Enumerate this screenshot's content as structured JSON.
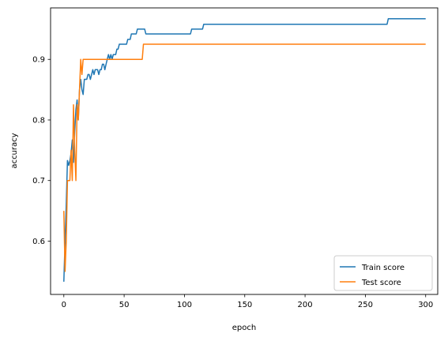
{
  "chart_data": {
    "type": "line",
    "title": "",
    "xlabel": "epoch",
    "ylabel": "accuracy",
    "xlim": [
      -11,
      310
    ],
    "ylim": [
      0.512,
      0.985
    ],
    "xticks": [
      0,
      50,
      100,
      150,
      200,
      250,
      300
    ],
    "yticks": [
      0.6,
      0.7,
      0.8,
      0.9
    ],
    "ytick_labels": [
      "0.6",
      "0.7",
      "0.8",
      "0.9"
    ],
    "grid": false,
    "legend_position": "bottom-right",
    "series": [
      {
        "name": "Train score",
        "color": "#1f77b4",
        "points": [
          [
            0,
            0.533
          ],
          [
            1,
            0.6
          ],
          [
            2,
            0.66
          ],
          [
            3,
            0.733
          ],
          [
            4,
            0.725
          ],
          [
            5,
            0.733
          ],
          [
            6,
            0.745
          ],
          [
            7,
            0.767
          ],
          [
            8,
            0.73
          ],
          [
            9,
            0.78
          ],
          [
            10,
            0.817
          ],
          [
            11,
            0.833
          ],
          [
            12,
            0.8
          ],
          [
            13,
            0.85
          ],
          [
            14,
            0.867
          ],
          [
            15,
            0.85
          ],
          [
            16,
            0.842
          ],
          [
            17,
            0.867
          ],
          [
            18,
            0.867
          ],
          [
            19,
            0.867
          ],
          [
            20,
            0.875
          ],
          [
            21,
            0.875
          ],
          [
            22,
            0.867
          ],
          [
            23,
            0.875
          ],
          [
            24,
            0.883
          ],
          [
            25,
            0.875
          ],
          [
            26,
            0.883
          ],
          [
            27,
            0.883
          ],
          [
            28,
            0.883
          ],
          [
            29,
            0.875
          ],
          [
            30,
            0.883
          ],
          [
            31,
            0.883
          ],
          [
            32,
            0.892
          ],
          [
            33,
            0.892
          ],
          [
            34,
            0.883
          ],
          [
            35,
            0.892
          ],
          [
            36,
            0.9
          ],
          [
            37,
            0.908
          ],
          [
            38,
            0.9
          ],
          [
            39,
            0.908
          ],
          [
            40,
            0.9
          ],
          [
            41,
            0.908
          ],
          [
            42,
            0.908
          ],
          [
            43,
            0.908
          ],
          [
            44,
            0.917
          ],
          [
            45,
            0.917
          ],
          [
            46,
            0.925
          ],
          [
            47,
            0.925
          ],
          [
            50,
            0.925
          ],
          [
            52,
            0.925
          ],
          [
            53,
            0.933
          ],
          [
            55,
            0.933
          ],
          [
            56,
            0.942
          ],
          [
            60,
            0.942
          ],
          [
            61,
            0.95
          ],
          [
            67,
            0.95
          ],
          [
            68,
            0.942
          ],
          [
            105,
            0.942
          ],
          [
            106,
            0.95
          ],
          [
            115,
            0.95
          ],
          [
            116,
            0.958
          ],
          [
            268,
            0.958
          ],
          [
            269,
            0.967
          ],
          [
            300,
            0.967
          ]
        ]
      },
      {
        "name": "Test score",
        "color": "#ff7f0e",
        "points": [
          [
            0,
            0.65
          ],
          [
            1,
            0.55
          ],
          [
            2,
            0.6
          ],
          [
            3,
            0.7
          ],
          [
            4,
            0.7
          ],
          [
            5,
            0.7
          ],
          [
            6,
            0.75
          ],
          [
            7,
            0.7
          ],
          [
            8,
            0.825
          ],
          [
            9,
            0.75
          ],
          [
            10,
            0.7
          ],
          [
            11,
            0.825
          ],
          [
            12,
            0.8
          ],
          [
            13,
            0.85
          ],
          [
            14,
            0.9
          ],
          [
            15,
            0.875
          ],
          [
            16,
            0.9
          ],
          [
            20,
            0.9
          ],
          [
            25,
            0.9
          ],
          [
            30,
            0.9
          ],
          [
            35,
            0.9
          ],
          [
            40,
            0.9
          ],
          [
            45,
            0.9
          ],
          [
            50,
            0.9
          ],
          [
            55,
            0.9
          ],
          [
            60,
            0.9
          ],
          [
            65,
            0.9
          ],
          [
            66,
            0.925
          ],
          [
            100,
            0.925
          ],
          [
            150,
            0.925
          ],
          [
            200,
            0.925
          ],
          [
            250,
            0.925
          ],
          [
            300,
            0.925
          ]
        ]
      }
    ]
  }
}
